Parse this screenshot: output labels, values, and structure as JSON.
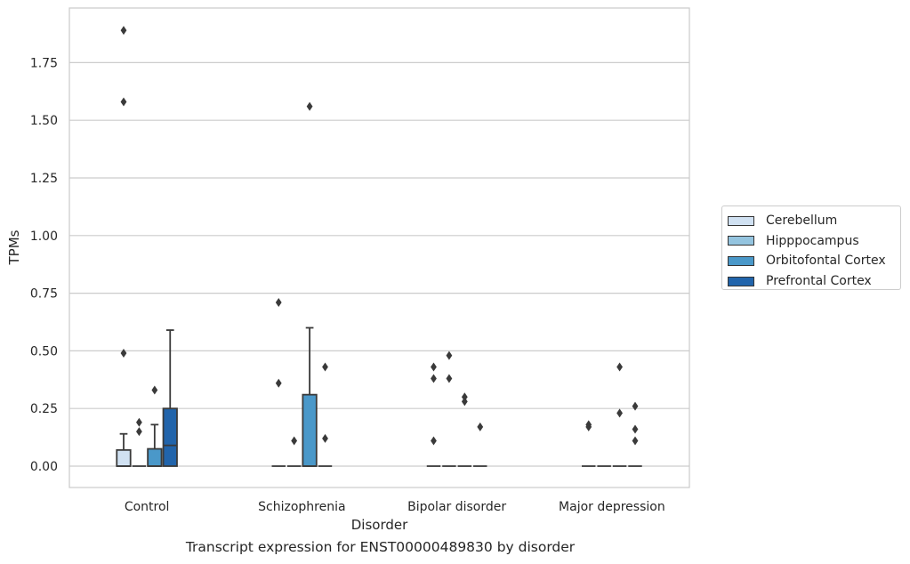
{
  "chart_data": {
    "type": "boxplot",
    "xlabel": "Disorder",
    "ylabel": "TPMs",
    "caption": "Transcript expression for ENST00000489830 by disorder",
    "categories": [
      "Control",
      "Schizophrenia",
      "Bipolar disorder",
      "Major depression"
    ],
    "ylim": [
      -0.09,
      1.97
    ],
    "yticks": [
      0.0,
      0.25,
      0.5,
      0.75,
      1.0,
      1.25,
      1.5,
      1.75
    ],
    "ytick_labels": [
      "0.00",
      "0.25",
      "0.50",
      "0.75",
      "1.00",
      "1.25",
      "1.50",
      "1.75"
    ],
    "grid": true,
    "legend_position": "right",
    "series": [
      {
        "name": "Cerebellum",
        "color": "#d0e1f2",
        "boxes": [
          {
            "q1": 0.0,
            "median": 0.0,
            "q3": 0.07,
            "whislo": 0.0,
            "whishi": 0.14,
            "fliers": [
              0.49,
              1.58,
              1.89
            ]
          },
          {
            "q1": 0.0,
            "median": 0.0,
            "q3": 0.0,
            "whislo": 0.0,
            "whishi": 0.0,
            "fliers": [
              0.36,
              0.71
            ]
          },
          {
            "q1": 0.0,
            "median": 0.0,
            "q3": 0.0,
            "whislo": 0.0,
            "whishi": 0.0,
            "fliers": [
              0.38,
              0.43,
              0.11
            ]
          },
          {
            "q1": 0.0,
            "median": 0.0,
            "q3": 0.0,
            "whislo": 0.0,
            "whishi": 0.0,
            "fliers": [
              0.17,
              0.18
            ]
          }
        ]
      },
      {
        "name": "Hipppocampus",
        "color": "#94c4df",
        "boxes": [
          {
            "q1": 0.0,
            "median": 0.0,
            "q3": 0.0,
            "whislo": 0.0,
            "whishi": 0.0,
            "fliers": [
              0.15,
              0.19
            ]
          },
          {
            "q1": 0.0,
            "median": 0.0,
            "q3": 0.0,
            "whislo": 0.0,
            "whishi": 0.0,
            "fliers": [
              0.11
            ]
          },
          {
            "q1": 0.0,
            "median": 0.0,
            "q3": 0.0,
            "whislo": 0.0,
            "whishi": 0.0,
            "fliers": [
              0.38,
              0.48
            ]
          },
          {
            "q1": 0.0,
            "median": 0.0,
            "q3": 0.0,
            "whislo": 0.0,
            "whishi": 0.0,
            "fliers": []
          }
        ]
      },
      {
        "name": "Orbitofontal Cortex",
        "color": "#4a98c9",
        "boxes": [
          {
            "q1": 0.0,
            "median": 0.0,
            "q3": 0.075,
            "whislo": 0.0,
            "whishi": 0.18,
            "fliers": [
              0.33
            ]
          },
          {
            "q1": 0.0,
            "median": 0.0,
            "q3": 0.31,
            "whislo": 0.0,
            "whishi": 0.6,
            "fliers": [
              1.56
            ]
          },
          {
            "q1": 0.0,
            "median": 0.0,
            "q3": 0.0,
            "whislo": 0.0,
            "whishi": 0.0,
            "fliers": [
              0.28,
              0.3
            ]
          },
          {
            "q1": 0.0,
            "median": 0.0,
            "q3": 0.0,
            "whislo": 0.0,
            "whishi": 0.0,
            "fliers": [
              0.23,
              0.43
            ]
          }
        ]
      },
      {
        "name": "Prefrontal Cortex",
        "color": "#2164ab",
        "boxes": [
          {
            "q1": 0.0,
            "median": 0.09,
            "q3": 0.25,
            "whislo": 0.0,
            "whishi": 0.59,
            "fliers": []
          },
          {
            "q1": 0.0,
            "median": 0.0,
            "q3": 0.0,
            "whislo": 0.0,
            "whishi": 0.0,
            "fliers": [
              0.12,
              0.43
            ]
          },
          {
            "q1": 0.0,
            "median": 0.0,
            "q3": 0.0,
            "whislo": 0.0,
            "whishi": 0.0,
            "fliers": [
              0.17
            ]
          },
          {
            "q1": 0.0,
            "median": 0.0,
            "q3": 0.0,
            "whislo": 0.0,
            "whishi": 0.0,
            "fliers": [
              0.11,
              0.16,
              0.26
            ]
          }
        ]
      }
    ]
  }
}
